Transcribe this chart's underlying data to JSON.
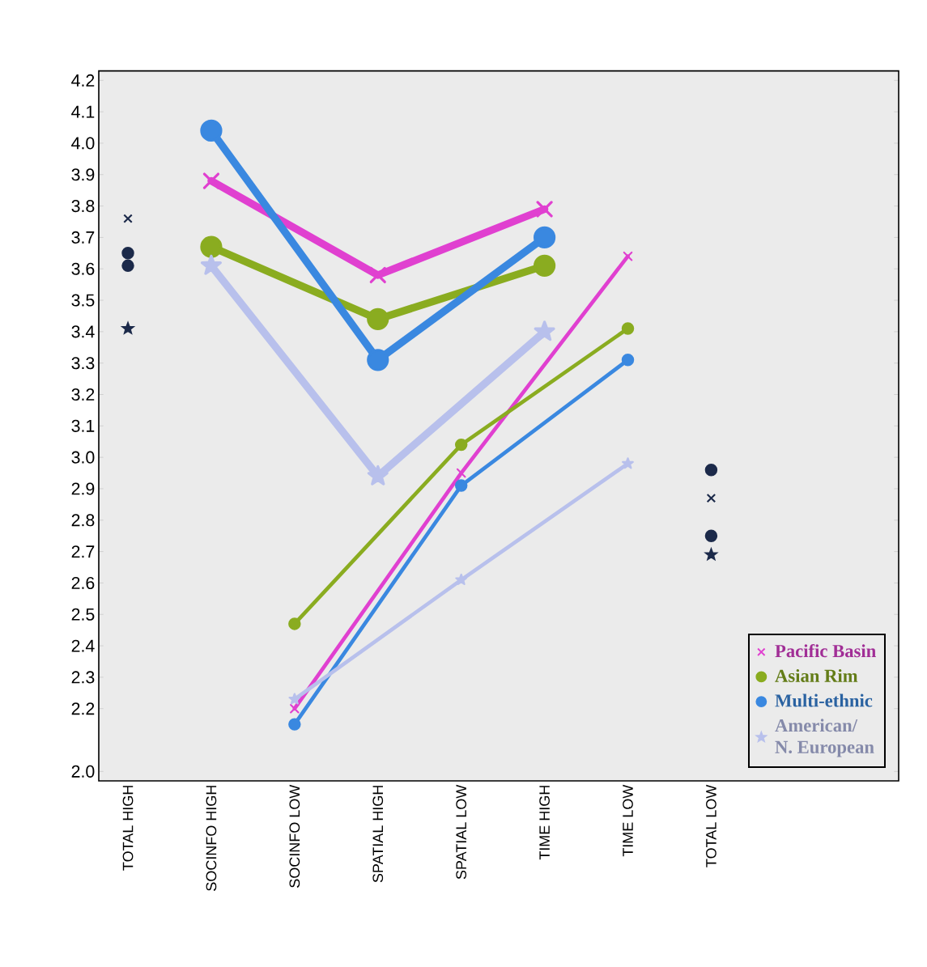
{
  "chart_data": {
    "type": "line",
    "categories": [
      "TOTAL HIGH",
      "SOCINFO HIGH",
      "SOCINFO LOW",
      "SPATIAL HIGH",
      "SPATIAL LOW",
      "TIME HIGH",
      "TIME LOW",
      "TOTAL LOW"
    ],
    "ylim": [
      1.97,
      4.23
    ],
    "yticks": [
      {
        "value": 2.0,
        "label": "2.0"
      },
      2.2,
      2.3,
      2.4,
      2.5,
      2.6,
      2.7,
      2.8,
      2.9,
      {
        "value": 3.0,
        "label": "3.0"
      },
      3.1,
      3.2,
      3.3,
      3.4,
      3.5,
      3.6,
      3.7,
      3.8,
      3.9,
      {
        "value": 4.0,
        "label": "4.0"
      },
      4.1,
      4.2
    ],
    "legend": "bottom right",
    "grid": false,
    "series": [
      {
        "name": "Pacific Basin",
        "color": "#e040d0",
        "marker": "cross",
        "x": [
          "SOCINFO HIGH",
          "SPATIAL HIGH",
          "TIME HIGH"
        ],
        "values": [
          3.88,
          3.58,
          3.79
        ]
      },
      {
        "name": "Asian Rim",
        "color": "#8aac20",
        "marker": "circle",
        "x": [
          "SOCINFO HIGH",
          "SPATIAL HIGH",
          "TIME HIGH"
        ],
        "values": [
          3.67,
          3.44,
          3.61
        ]
      },
      {
        "name": "Multi-ethnic",
        "color": "#3a88e0",
        "marker": "circle",
        "x": [
          "SOCINFO HIGH",
          "SPATIAL HIGH",
          "TIME HIGH"
        ],
        "values": [
          4.04,
          3.31,
          3.7
        ]
      },
      {
        "name": "American/ N. European",
        "color": "#b8c0ec",
        "marker": "star",
        "x": [
          "SOCINFO HIGH",
          "SPATIAL HIGH",
          "TIME HIGH"
        ],
        "values": [
          3.61,
          2.94,
          3.4
        ]
      },
      {
        "color": "#e040d0",
        "marker": "cross",
        "x": [
          "SOCINFO LOW",
          "SPATIAL LOW",
          "TIME LOW"
        ],
        "values": [
          2.2,
          2.95,
          3.64
        ]
      },
      {
        "color": "#8aac20",
        "marker": "circle",
        "x": [
          "SOCINFO LOW",
          "SPATIAL LOW",
          "TIME LOW"
        ],
        "values": [
          2.47,
          3.04,
          3.41
        ]
      },
      {
        "color": "#3a88e0",
        "marker": "circle",
        "x": [
          "SOCINFO LOW",
          "SPATIAL LOW",
          "TIME LOW"
        ],
        "values": [
          2.15,
          2.91,
          3.31
        ]
      },
      {
        "color": "#b8c0ec",
        "marker": "star",
        "x": [
          "SOCINFO LOW",
          "SPATIAL LOW",
          "TIME LOW"
        ],
        "values": [
          2.23,
          2.61,
          2.98
        ]
      },
      {
        "type": "scatter",
        "color": "#1c2a4a",
        "marker": "cross",
        "x": [
          "TOTAL HIGH",
          "TOTAL LOW"
        ],
        "values": [
          3.76,
          2.87
        ]
      },
      {
        "type": "scatter",
        "color": "#1c2a4a",
        "marker": "circle",
        "x": [
          "TOTAL HIGH",
          "TOTAL LOW"
        ],
        "values": [
          3.61,
          2.96
        ]
      },
      {
        "type": "scatter",
        "color": "#1c2a4a",
        "marker": "circle",
        "x": [
          "TOTAL HIGH",
          "TOTAL LOW"
        ],
        "values": [
          3.65,
          2.75
        ]
      },
      {
        "type": "scatter",
        "color": "#1c2a4a",
        "marker": "star",
        "x": [
          "TOTAL HIGH",
          "TOTAL LOW"
        ],
        "values": [
          3.41,
          2.69
        ]
      }
    ]
  }
}
